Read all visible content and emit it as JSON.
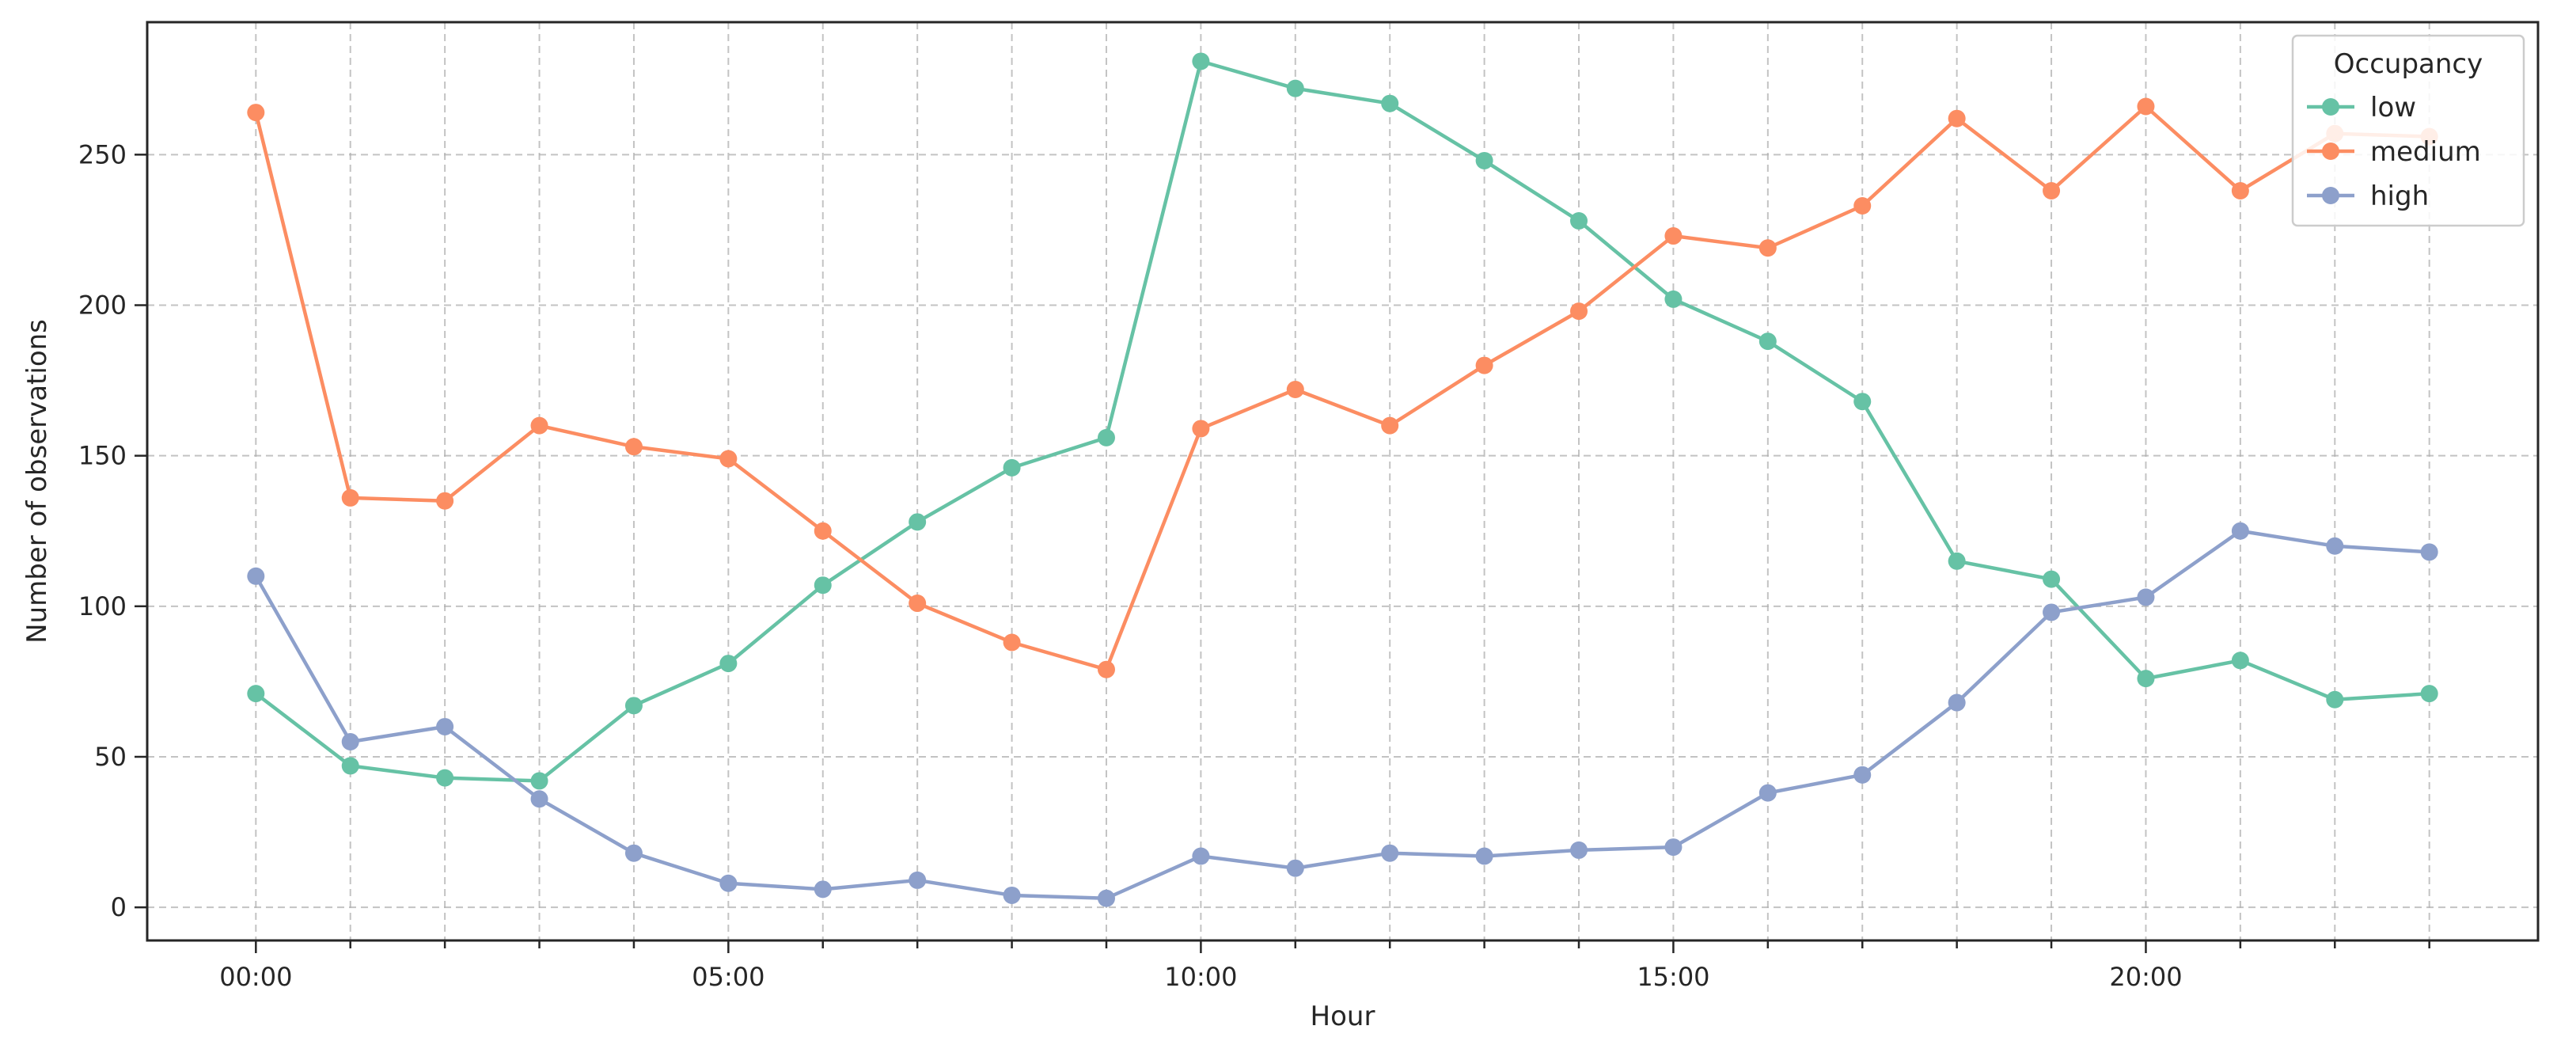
{
  "chart_data": {
    "type": "line",
    "title": "",
    "xlabel": "Hour",
    "ylabel": "Number of observations",
    "x": [
      0,
      1,
      2,
      3,
      4,
      5,
      6,
      7,
      8,
      9,
      10,
      11,
      12,
      13,
      14,
      15,
      16,
      17,
      18,
      19,
      20,
      21,
      22,
      23
    ],
    "xlim": [
      -1.15,
      24.15
    ],
    "ylim": [
      -11,
      294
    ],
    "x_ticks": [
      {
        "value": 0,
        "label": "00:00"
      },
      {
        "value": 5,
        "label": "05:00"
      },
      {
        "value": 10,
        "label": "10:00"
      },
      {
        "value": 15,
        "label": "15:00"
      },
      {
        "value": 20,
        "label": "20:00"
      }
    ],
    "x_minor_ticks": [
      1,
      2,
      3,
      4,
      6,
      7,
      8,
      9,
      11,
      12,
      13,
      14,
      16,
      17,
      18,
      19,
      21,
      22,
      23
    ],
    "y_ticks": [
      {
        "value": 0,
        "label": "0"
      },
      {
        "value": 50,
        "label": "50"
      },
      {
        "value": 100,
        "label": "100"
      },
      {
        "value": 150,
        "label": "150"
      },
      {
        "value": 200,
        "label": "200"
      },
      {
        "value": 250,
        "label": "250"
      }
    ],
    "grid": true,
    "legend_title": "Occupancy",
    "legend_position": "top-right",
    "series": [
      {
        "name": "low",
        "color": "#66c2a5",
        "values": [
          71,
          47,
          43,
          42,
          67,
          81,
          107,
          128,
          146,
          156,
          281,
          272,
          267,
          248,
          228,
          202,
          188,
          168,
          115,
          109,
          76,
          82,
          69,
          71
        ]
      },
      {
        "name": "medium",
        "color": "#fc8d62",
        "values": [
          264,
          136,
          135,
          160,
          153,
          149,
          125,
          101,
          88,
          79,
          159,
          172,
          160,
          180,
          198,
          223,
          219,
          233,
          262,
          238,
          266,
          238,
          257,
          256
        ]
      },
      {
        "name": "high",
        "color": "#8da0cb",
        "values": [
          110,
          55,
          60,
          36,
          18,
          8,
          6,
          9,
          4,
          3,
          17,
          13,
          18,
          17,
          19,
          20,
          38,
          44,
          68,
          98,
          103,
          125,
          120,
          118
        ]
      }
    ]
  }
}
